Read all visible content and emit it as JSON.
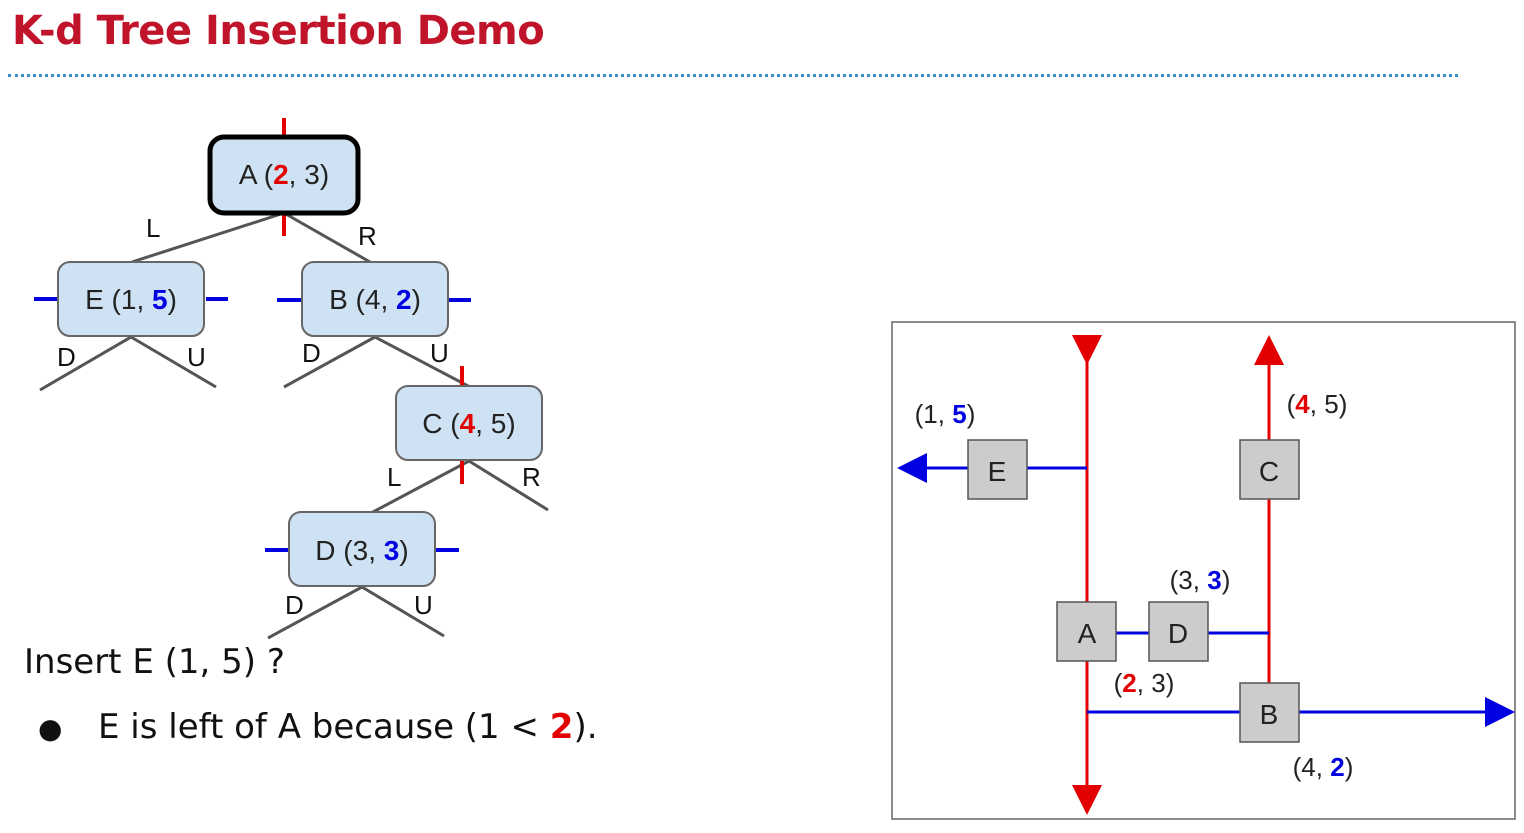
{
  "slide": {
    "title": "K-d Tree Insertion Demo",
    "question": "Insert E (1, 5) ?",
    "bullet": {
      "prefix": "E is left of A because (1 < ",
      "highlight": "2",
      "suffix": ")."
    }
  },
  "colors": {
    "title": "#c0142a",
    "x_split": "#e30000",
    "y_split": "#0000e0",
    "node_fill": "#cfe2f3",
    "point_box_fill": "#cccccc"
  },
  "tree": {
    "nodes": [
      {
        "id": "A",
        "x": "2",
        "y": "3",
        "split": "x",
        "current": true
      },
      {
        "id": "E",
        "x": "1",
        "y": "5",
        "split": "y",
        "current": false
      },
      {
        "id": "B",
        "x": "4",
        "y": "2",
        "split": "y",
        "current": false
      },
      {
        "id": "C",
        "x": "4",
        "y": "5",
        "split": "x",
        "current": false
      },
      {
        "id": "D",
        "x": "3",
        "y": "3",
        "split": "y",
        "current": false
      }
    ],
    "edge_labels": {
      "A_left": "L",
      "A_right": "R",
      "E_down": "D",
      "E_up": "U",
      "B_down": "D",
      "B_up": "U",
      "C_left": "L",
      "C_right": "R",
      "D_down": "D",
      "D_up": "U"
    }
  },
  "plane": {
    "points": [
      {
        "id": "E",
        "x": "1",
        "y": "5",
        "split": "y"
      },
      {
        "id": "C",
        "x": "4",
        "y": "5",
        "split": "x"
      },
      {
        "id": "D",
        "x": "3",
        "y": "3",
        "split": "y"
      },
      {
        "id": "A",
        "x": "2",
        "y": "3",
        "split": "x"
      },
      {
        "id": "B",
        "x": "4",
        "y": "2",
        "split": "y"
      }
    ]
  }
}
